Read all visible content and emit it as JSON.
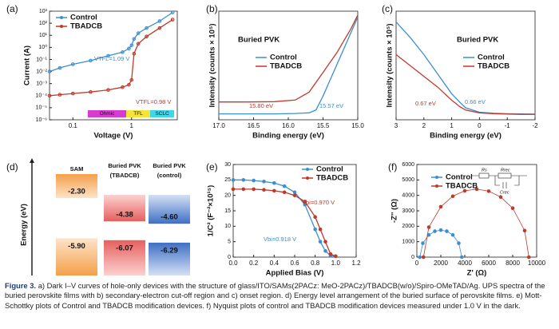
{
  "chart_data": [
    {
      "type": "line",
      "panel_label": "(a)",
      "xlabel": "Voltage (V)",
      "ylabel": "Current (A)",
      "log_x": true,
      "log_y": true,
      "xlim": [
        0.04,
        6
      ],
      "xticks": [
        0.1,
        1
      ],
      "ylim": [
        1e-06,
        1000
      ],
      "yticks": [
        {
          "value": 1e-06,
          "label": "10⁻⁶"
        },
        {
          "value": 1e-05,
          "label": "10⁻⁵"
        },
        {
          "value": 0.0001,
          "label": "10⁻⁴"
        },
        {
          "value": 0.001,
          "label": "10⁻³"
        },
        {
          "value": 0.01,
          "label": "10⁻²"
        },
        {
          "value": 0.1,
          "label": "10⁻¹"
        },
        {
          "value": 1,
          "label": "10⁰"
        },
        {
          "value": 10,
          "label": "10¹"
        },
        {
          "value": 100,
          "label": "10²"
        },
        {
          "value": 1000,
          "label": "10³"
        }
      ],
      "markers": true,
      "series": [
        {
          "name": "Control",
          "color": "#3b8fd0",
          "x": [
            0.04,
            0.06,
            0.1,
            0.2,
            0.4,
            0.7,
            0.9,
            1.0,
            1.1,
            1.3,
            1.8,
            3,
            5
          ],
          "values": [
            0.01,
            0.02,
            0.04,
            0.08,
            0.2,
            0.4,
            0.8,
            1.5,
            5,
            15,
            40,
            150,
            800
          ]
        },
        {
          "name": "TBADCB",
          "color": "#c0392b",
          "x": [
            0.04,
            0.06,
            0.1,
            0.2,
            0.4,
            0.7,
            0.9,
            1.0,
            1.1,
            1.3,
            1.8,
            3,
            5
          ],
          "values": [
            0.0001,
            0.00012,
            0.00015,
            0.0002,
            0.0003,
            0.0005,
            0.0008,
            0.002,
            0.3,
            2,
            8,
            40,
            200
          ]
        }
      ],
      "annotations": [
        "VTFL=1.09 V",
        "VTFL=0.98 V"
      ],
      "regions": [
        "Ohmic",
        "TFL",
        "SCLC"
      ]
    },
    {
      "type": "line",
      "panel_label": "(b)",
      "title": "Buried PVK",
      "xlabel": "Binding energy (eV)",
      "ylabel": "Intensity (counts × 10⁵)",
      "xlim": [
        17.0,
        15.0
      ],
      "xticks": [
        {
          "value": 17,
          "label": "17.0"
        },
        16.5,
        {
          "value": 16,
          "label": "16.0"
        },
        15.5,
        {
          "value": 15,
          "label": "15.0"
        }
      ],
      "ylim": [
        0,
        5.5
      ],
      "markers": false,
      "series": [
        {
          "name": "Control",
          "color": "#3b8fd0",
          "x": [
            17,
            16.6,
            16.2,
            15.9,
            15.7,
            15.6,
            15.5,
            15.4,
            15.3,
            15.2,
            15.1,
            15.0
          ],
          "values": [
            0.3,
            0.3,
            0.3,
            0.32,
            0.35,
            0.5,
            1.2,
            2.0,
            2.8,
            3.6,
            4.4,
            5.2
          ]
        },
        {
          "name": "TBADCB",
          "color": "#c0392b",
          "x": [
            17,
            16.6,
            16.2,
            15.9,
            15.7,
            15.6,
            15.5,
            15.4,
            15.3,
            15.2,
            15.1,
            15.0
          ],
          "values": [
            0.9,
            0.9,
            0.92,
            1.0,
            1.4,
            1.9,
            2.4,
            2.9,
            3.4,
            4.0,
            4.6,
            5.3
          ]
        }
      ],
      "annotations": [
        "15.80 eV",
        "15.57 eV"
      ]
    },
    {
      "type": "line",
      "panel_label": "(c)",
      "title": "Buried PVK",
      "xlabel": "Binding energy (eV)",
      "ylabel": "Intensity (counts × 10⁵)",
      "xlim": [
        3,
        -2
      ],
      "xticks": [
        3,
        2,
        1,
        0,
        -1,
        -2
      ],
      "ylim": [
        0,
        5
      ],
      "markers": false,
      "series": [
        {
          "name": "Control",
          "color": "#3b8fd0",
          "x": [
            3,
            2.5,
            2,
            1.5,
            1,
            0.7,
            0.5,
            0,
            -0.5,
            -1,
            -1.5,
            -2
          ],
          "values": [
            4.5,
            3.8,
            3.0,
            2.1,
            1.2,
            0.8,
            0.55,
            0.35,
            0.3,
            0.28,
            0.27,
            0.26
          ]
        },
        {
          "name": "TBADCB",
          "color": "#c0392b",
          "x": [
            3,
            2.5,
            2,
            1.5,
            1,
            0.7,
            0.5,
            0,
            -0.5,
            -1,
            -1.5,
            -2
          ],
          "values": [
            3.0,
            2.5,
            2.0,
            1.5,
            0.9,
            0.6,
            0.45,
            0.32,
            0.28,
            0.26,
            0.25,
            0.25
          ]
        }
      ],
      "annotations": [
        "0.67 eV",
        "0.66 eV"
      ]
    },
    {
      "type": "energy-level",
      "panel_label": "(d)",
      "ylabel": "Energy (eV)",
      "columns": [
        {
          "name": [
            "SAM"
          ],
          "lumo": -2.3,
          "homo": -5.9,
          "value_labels": [
            "-2.30",
            "-5.90"
          ],
          "color": "#f08a24"
        },
        {
          "name": [
            "Buried PVK",
            "(TBADCB)"
          ],
          "lumo": -4.38,
          "homo": -6.07,
          "value_labels": [
            "-4.38",
            "-6.07"
          ],
          "color": "#e5605f"
        },
        {
          "name": [
            "Buried PVK",
            "(control)"
          ],
          "lumo": -4.6,
          "homo": -6.29,
          "value_labels": [
            "-4.60",
            "-6.29"
          ],
          "color": "#3e6fc4"
        }
      ]
    },
    {
      "type": "line",
      "panel_label": "(e)",
      "xlabel": "Applied Bias (V)",
      "ylabel": "1/C² (F⁻²×10¹⁵)",
      "xlim": [
        0,
        1.2
      ],
      "xticks": [
        {
          "value": 0,
          "label": "0.0"
        },
        0.2,
        0.4,
        0.6,
        0.8,
        {
          "value": 1,
          "label": "1.0"
        },
        1.2
      ],
      "ylim": [
        0,
        30
      ],
      "yticks": [
        0,
        5,
        10,
        15,
        20,
        25,
        30
      ],
      "markers": true,
      "series": [
        {
          "name": "Control",
          "color": "#3b8fd0",
          "x": [
            0,
            0.1,
            0.2,
            0.3,
            0.4,
            0.5,
            0.6,
            0.7,
            0.8,
            0.85,
            0.9,
            0.95,
            1.0
          ],
          "values": [
            25,
            25,
            24.8,
            24.5,
            24,
            23,
            21,
            17,
            9,
            5,
            2,
            0.5,
            0.3
          ]
        },
        {
          "name": "TBADCB",
          "color": "#c0392b",
          "x": [
            0,
            0.1,
            0.2,
            0.3,
            0.4,
            0.5,
            0.6,
            0.7,
            0.8,
            0.85,
            0.9,
            0.95,
            1.0
          ],
          "values": [
            22,
            22,
            22,
            21.8,
            21.5,
            21,
            20,
            18,
            13,
            9,
            5,
            1,
            0.3
          ]
        }
      ],
      "annotations": [
        "Vbi=0.970 V",
        "Vbi=0.918 V"
      ]
    },
    {
      "type": "scatter",
      "panel_label": "(f)",
      "xlabel": "Z' (Ω)",
      "ylabel": "-Z'' (Ω)",
      "xlim": [
        0,
        10000
      ],
      "xticks": [
        0,
        2000,
        4000,
        6000,
        8000,
        10000
      ],
      "ylim": [
        0,
        6000
      ],
      "yticks": [
        0,
        1000,
        2000,
        3000,
        4000,
        5000,
        6000
      ],
      "markers": true,
      "series": [
        {
          "name": "Control",
          "color": "#3b8fd0",
          "x": [
            250,
            500,
            1000,
            1500,
            2000,
            2500,
            3000,
            3500,
            3750
          ],
          "values": [
            0,
            901,
            1436,
            1677,
            1750,
            1677,
            1436,
            901,
            0
          ]
        },
        {
          "name": "TBADCB",
          "color": "#c0392b",
          "x": [
            550,
            1000,
            2000,
            3000,
            4000,
            5000,
            6000,
            7000,
            8000,
            9000,
            9350
          ],
          "values": [
            0,
            1939,
            3265,
            3944,
            4296,
            4400,
            4273,
            3893,
            3171,
            1720,
            0
          ]
        }
      ],
      "circuit_labels": [
        "Rs",
        "Rrec",
        "Crec"
      ]
    }
  ],
  "figure_label": "Figure 3.",
  "caption": "a) Dark I–V curves of hole-only devices with the structure of glass/ITO/SAMs(2PACz: MeO-2PACz)/TBADCB(w/o)/Spiro-OMeTAD/Ag. UPS spectra of the buried perovskite films with b) secondary-electron cut-off region and c) onset region. d) Energy level arrangement of the buried surface of perovskite films. e) Mott-Schottky plots of Control and TBADCB modification devices. f) Nyquist plots of control and TBADCB modification devices measured under 1.0 V in the dark."
}
